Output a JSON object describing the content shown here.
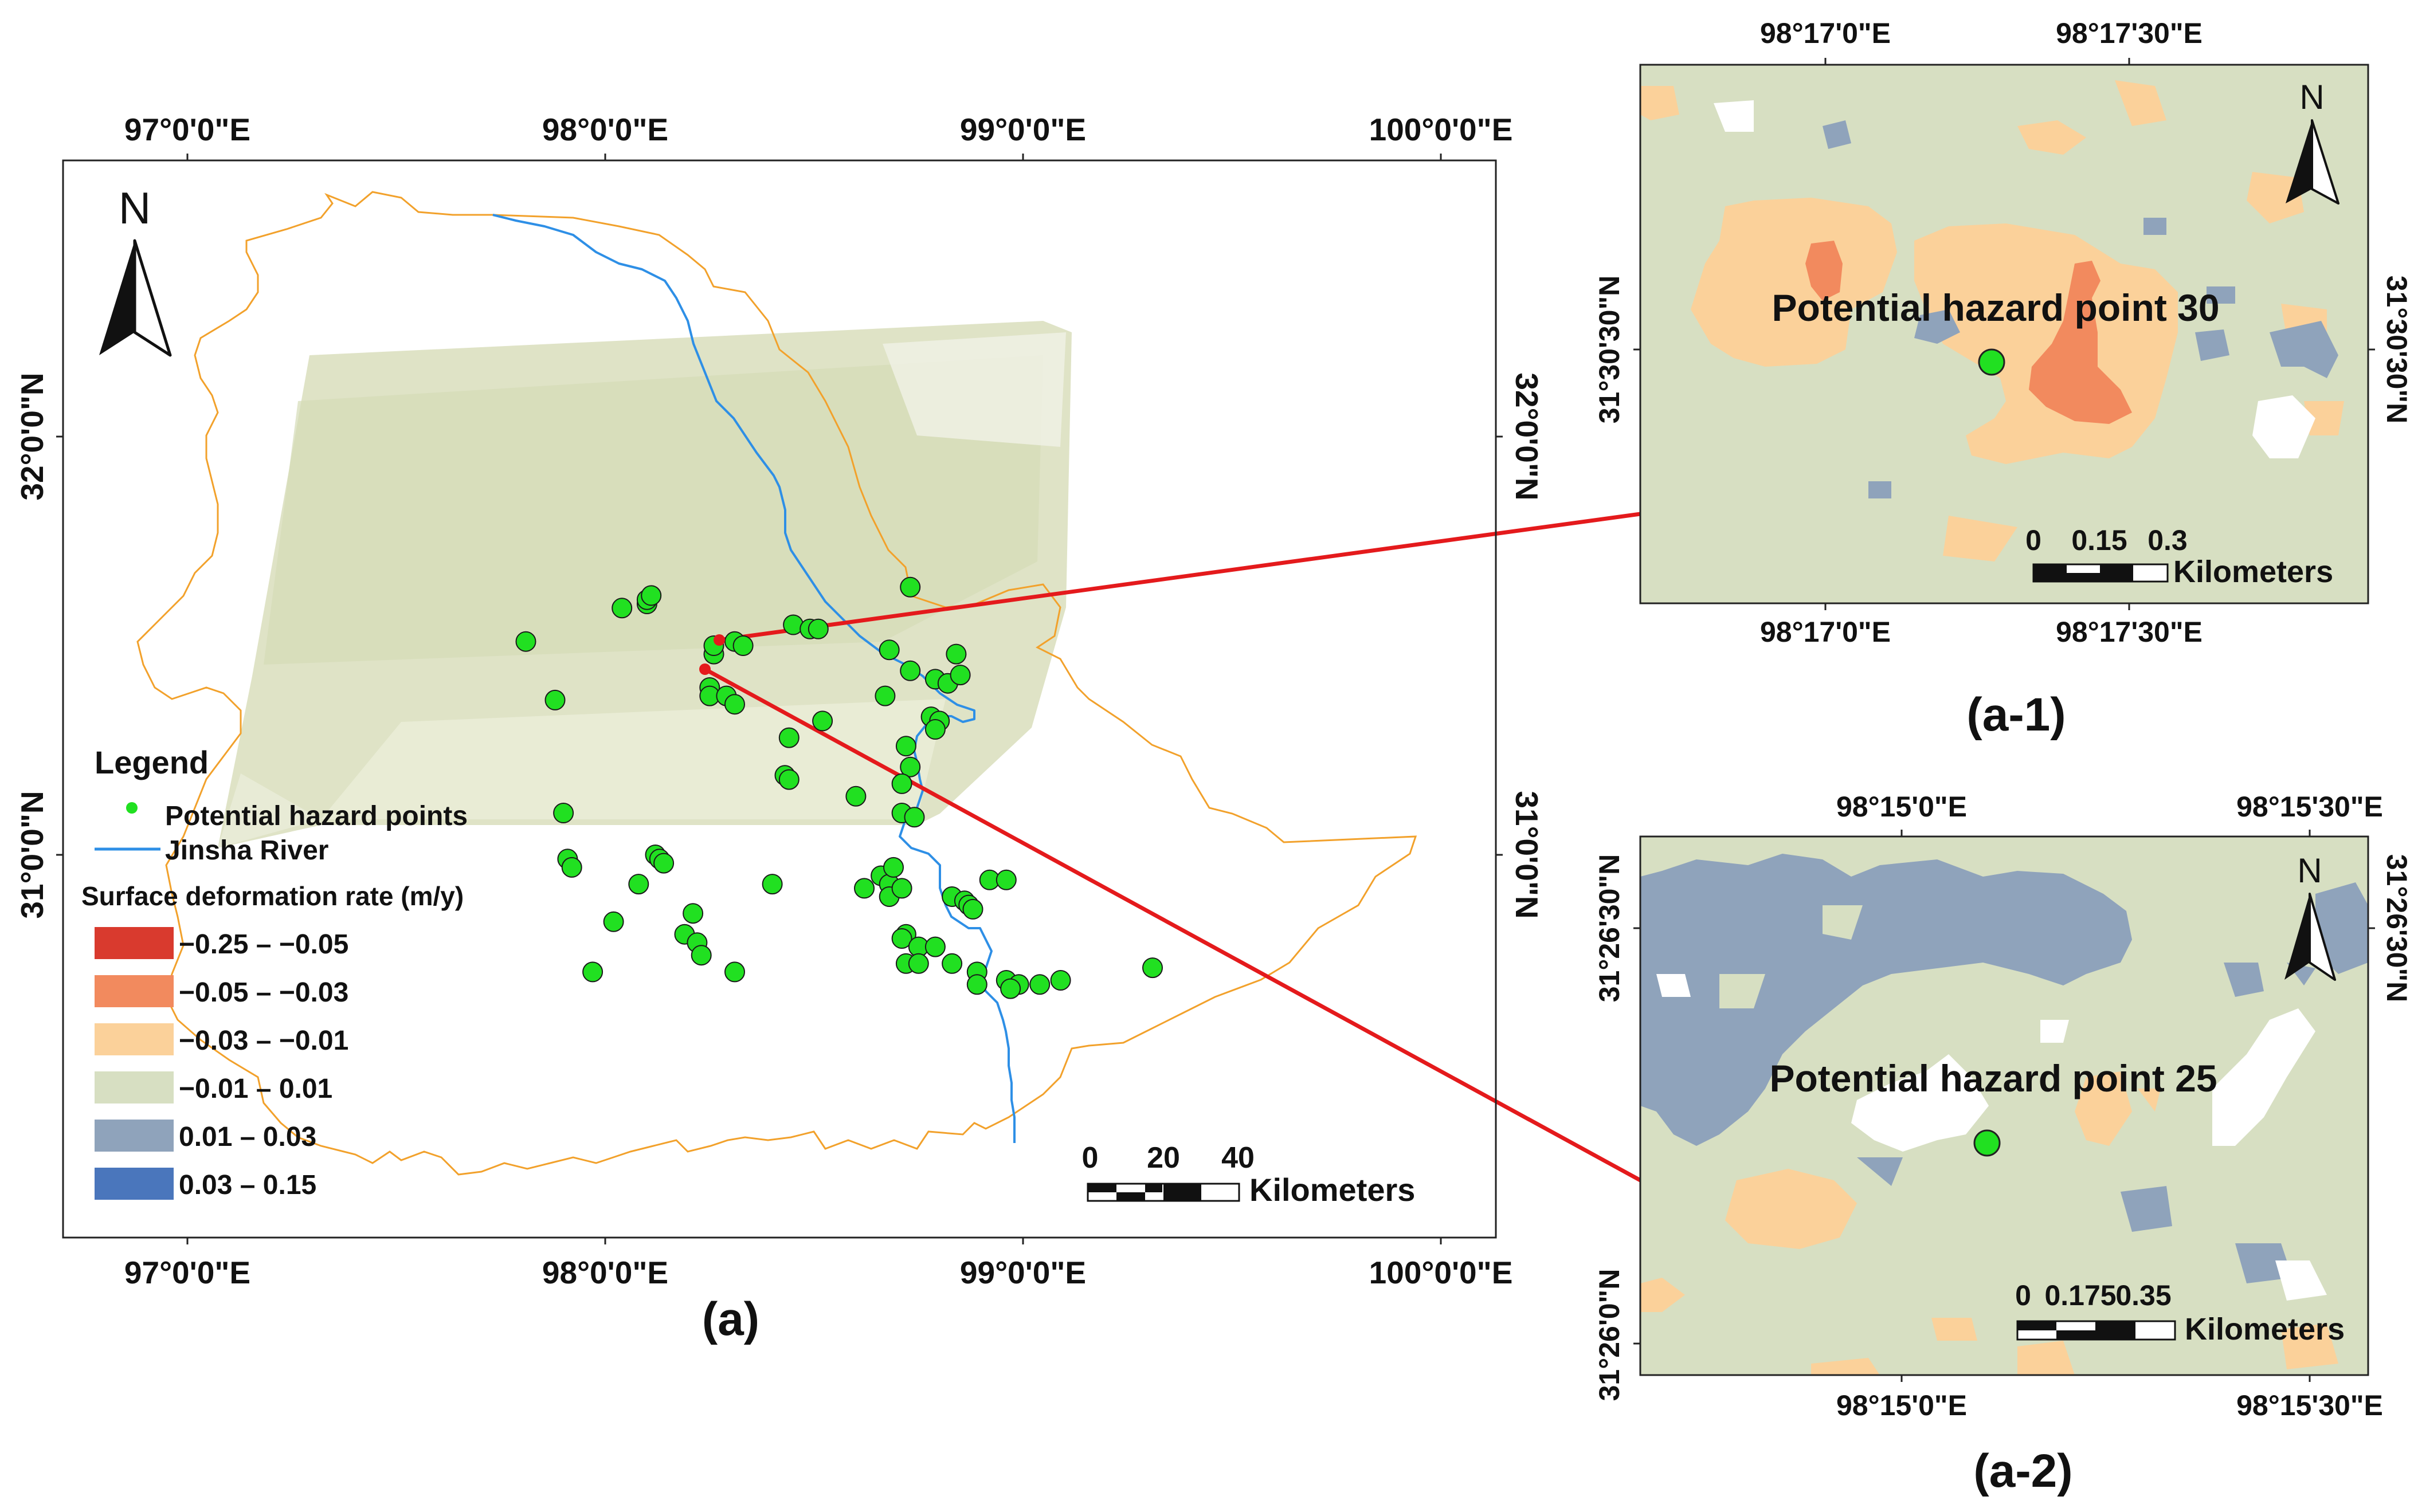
{
  "main_map": {
    "caption": "(a)",
    "top_lon_labels": [
      "97°0'0\"E",
      "98°0'0\"E",
      "99°0'0\"E",
      "100°0'0\"E"
    ],
    "bottom_lon_labels": [
      "97°0'0\"E",
      "98°0'0\"E",
      "99°0'0\"E",
      "100°0'0\"E"
    ],
    "left_lat_labels": [
      "32°0'0\"N",
      "31°0'0\"N"
    ],
    "right_lat_labels": [
      "32°0'0\"N",
      "31°0'0\"N"
    ],
    "north_label": "N",
    "scale_numbers": [
      "0",
      "20",
      "40"
    ],
    "scale_unit": "Kilometers"
  },
  "legend": {
    "title": "Legend",
    "point_label": "Potential hazard points",
    "river_label": "Jinsha River",
    "rate_title": "Surface deformation rate (m/y)",
    "classes": [
      {
        "label": "−0.25 – −0.05",
        "color": "#d93a2e"
      },
      {
        "label": "−0.05 – −0.03",
        "color": "#f28a5e"
      },
      {
        "label": "−0.03 – −0.01",
        "color": "#fbd19a"
      },
      {
        "label": "−0.01 – 0.01",
        "color": "#d7dfc2"
      },
      {
        "label": "0.01 – 0.03",
        "color": "#8fa3bb"
      },
      {
        "label": "0.03 – 0.15",
        "color": "#4a76bc"
      }
    ]
  },
  "colors": {
    "boundary": "#f2a12b",
    "river": "#2e8fe6",
    "hazard_point": "#21e021",
    "leader_line": "#e41a1c"
  },
  "inset1": {
    "caption": "(a-1)",
    "title": "Potential hazard point 30",
    "top_lon_labels": [
      "98°17'0\"E",
      "98°17'30\"E"
    ],
    "bottom_lon_labels": [
      "98°17'0\"E",
      "98°17'30\"E"
    ],
    "left_lat_label": "31°30'30\"N",
    "right_lat_label": "31°30'30\"N",
    "north_label": "N",
    "scale_numbers": [
      "0",
      "0.15",
      "0.3"
    ],
    "scale_unit": "Kilometers"
  },
  "inset2": {
    "caption": "(a-2)",
    "title": "Potential hazard point 25",
    "top_lon_labels": [
      "98°15'0\"E",
      "98°15'30\"E"
    ],
    "bottom_lon_labels": [
      "98°15'0\"E",
      "98°15'30\"E"
    ],
    "left_lat_labels": [
      "31°26'30\"N",
      "31°26'0\"N"
    ],
    "right_lat_label": "31°26'30\"N",
    "north_label": "N",
    "scale_numbers": [
      "0",
      "0.175",
      "0.35"
    ],
    "scale_unit": "Kilometers"
  },
  "chart_data": {
    "type": "scatter",
    "title": "",
    "xlabel": "",
    "ylabel": "",
    "xlim": [
      96.7,
      100.14
    ],
    "ylim": [
      30.23,
      32.67
    ],
    "series": [
      {
        "name": "Potential hazard points",
        "points": [
          [
            97.81,
            31.51
          ],
          [
            97.88,
            31.37
          ],
          [
            98.04,
            31.59
          ],
          [
            98.1,
            31.6
          ],
          [
            98.1,
            31.61
          ],
          [
            98.11,
            31.62
          ],
          [
            98.26,
            31.48
          ],
          [
            98.26,
            31.5
          ],
          [
            98.31,
            31.51
          ],
          [
            98.33,
            31.5
          ],
          [
            98.25,
            31.4
          ],
          [
            98.25,
            31.38
          ],
          [
            98.29,
            31.38
          ],
          [
            98.31,
            31.36
          ],
          [
            98.45,
            31.55
          ],
          [
            98.49,
            31.54
          ],
          [
            98.51,
            31.54
          ],
          [
            98.44,
            31.28
          ],
          [
            98.43,
            31.19
          ],
          [
            98.44,
            31.18
          ],
          [
            98.52,
            31.32
          ],
          [
            98.73,
            31.64
          ],
          [
            98.68,
            31.49
          ],
          [
            98.73,
            31.44
          ],
          [
            98.84,
            31.48
          ],
          [
            98.79,
            31.42
          ],
          [
            98.82,
            31.41
          ],
          [
            98.85,
            31.43
          ],
          [
            98.67,
            31.38
          ],
          [
            98.78,
            31.33
          ],
          [
            98.8,
            31.32
          ],
          [
            98.79,
            31.3
          ],
          [
            98.72,
            31.26
          ],
          [
            98.73,
            31.21
          ],
          [
            98.71,
            31.17
          ],
          [
            98.6,
            31.14
          ],
          [
            98.71,
            31.1
          ],
          [
            98.74,
            31.09
          ],
          [
            97.9,
            31.1
          ],
          [
            97.91,
            30.99
          ],
          [
            97.92,
            30.97
          ],
          [
            98.08,
            30.93
          ],
          [
            98.12,
            31.0
          ],
          [
            98.13,
            30.99
          ],
          [
            98.14,
            30.98
          ],
          [
            98.4,
            30.93
          ],
          [
            98.02,
            30.84
          ],
          [
            98.21,
            30.86
          ],
          [
            98.19,
            30.81
          ],
          [
            98.22,
            30.79
          ],
          [
            98.23,
            30.76
          ],
          [
            97.97,
            30.72
          ],
          [
            98.31,
            30.72
          ],
          [
            98.62,
            30.92
          ],
          [
            98.66,
            30.95
          ],
          [
            98.68,
            30.93
          ],
          [
            98.69,
            30.97
          ],
          [
            98.68,
            30.9
          ],
          [
            98.71,
            30.92
          ],
          [
            98.83,
            30.9
          ],
          [
            98.86,
            30.89
          ],
          [
            98.87,
            30.88
          ],
          [
            98.88,
            30.87
          ],
          [
            98.92,
            30.94
          ],
          [
            98.96,
            30.94
          ],
          [
            98.72,
            30.81
          ],
          [
            98.71,
            30.8
          ],
          [
            98.75,
            30.78
          ],
          [
            98.79,
            30.78
          ],
          [
            98.72,
            30.74
          ],
          [
            98.75,
            30.74
          ],
          [
            98.83,
            30.74
          ],
          [
            98.89,
            30.72
          ],
          [
            98.96,
            30.7
          ],
          [
            98.99,
            30.69
          ],
          [
            98.97,
            30.68
          ],
          [
            98.89,
            30.69
          ],
          [
            99.04,
            30.69
          ],
          [
            99.09,
            30.7
          ],
          [
            99.31,
            30.73
          ]
        ]
      }
    ]
  }
}
